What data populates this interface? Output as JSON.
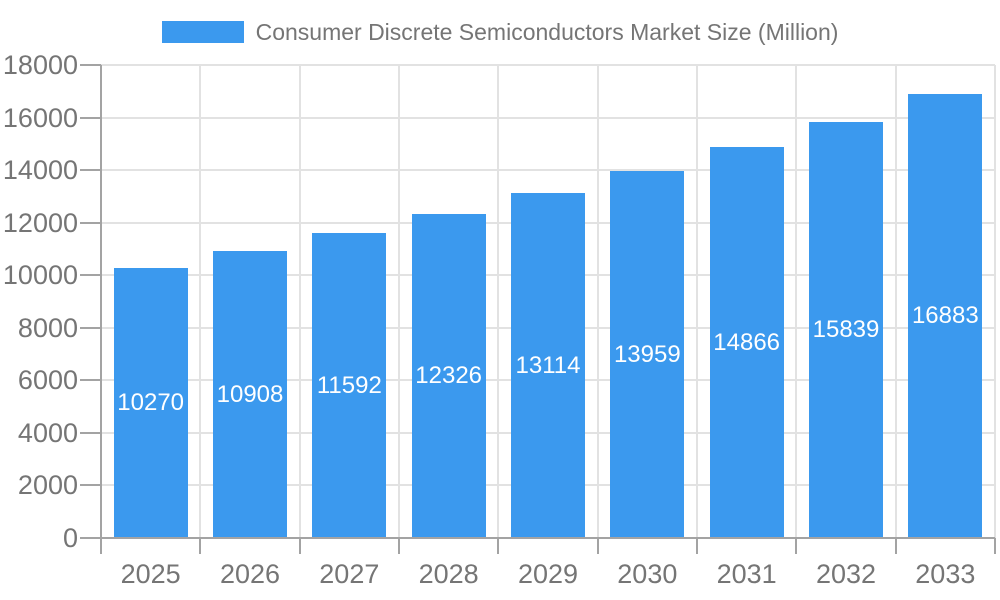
{
  "colors": {
    "bar": "#3b99ee",
    "grid": "#e2e2e2",
    "axis": "#a3a3a3",
    "tick": "#a3a3a3",
    "axis_label": "#757575",
    "value_label": "#ffffff",
    "legend_label": "#757575",
    "background": "#ffffff"
  },
  "chart_data": {
    "type": "bar",
    "title": "Consumer Discrete Semiconductors Market Size (Million)",
    "legend": [
      "Consumer Discrete Semiconductors Market Size (Million)"
    ],
    "legend_position": "top-center",
    "categories": [
      "2025",
      "2026",
      "2027",
      "2028",
      "2029",
      "2030",
      "2031",
      "2032",
      "2033"
    ],
    "series": [
      {
        "name": "Consumer Discrete Semiconductors Market Size (Million)",
        "values": [
          10270,
          10908,
          11592,
          12326,
          13114,
          13959,
          14866,
          15839,
          16883
        ]
      }
    ],
    "xlabel": "",
    "ylabel": "",
    "ylim": [
      0,
      18000
    ],
    "ytick_interval": 2000,
    "yticks": [
      0,
      2000,
      4000,
      6000,
      8000,
      10000,
      12000,
      14000,
      16000,
      18000
    ],
    "grid": true,
    "value_labels": "inside-center"
  }
}
